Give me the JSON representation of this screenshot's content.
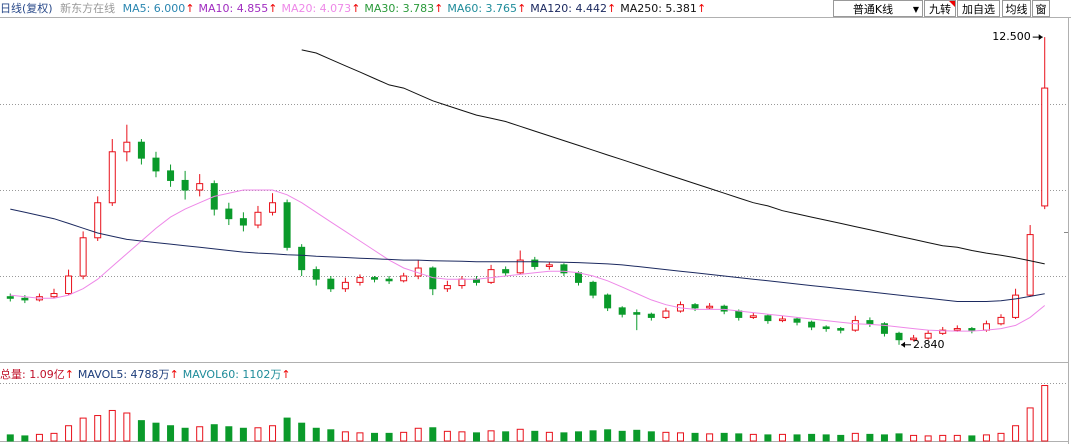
{
  "toolbar": {
    "period": "日线(复权)",
    "stock": "新东方在线",
    "buttons": [
      "普通K线",
      "九转",
      "加自选",
      "均线",
      "窗"
    ]
  },
  "chart_data": {
    "type": "candlestick",
    "categories": [
      null,
      null,
      null,
      null,
      null,
      null,
      null,
      null,
      null,
      null,
      null,
      null,
      null,
      null,
      null,
      null,
      null,
      null,
      null,
      null,
      null,
      null,
      null,
      null,
      null,
      null,
      null,
      null,
      null,
      null,
      null,
      null,
      null,
      null,
      null,
      null,
      null,
      null,
      null,
      null,
      null,
      null,
      null,
      null,
      null,
      null,
      null,
      null,
      null,
      null,
      null,
      null,
      null,
      null,
      null,
      null,
      null,
      null,
      null,
      null,
      null,
      null,
      null,
      null,
      null,
      null,
      null,
      null,
      null,
      null,
      null,
      null
    ],
    "open": [
      4.35,
      4.3,
      4.25,
      4.35,
      4.45,
      5.0,
      6.2,
      7.3,
      8.9,
      9.2,
      8.7,
      8.3,
      8.0,
      7.7,
      7.9,
      7.1,
      6.8,
      6.6,
      7.0,
      7.3,
      5.9,
      5.2,
      4.9,
      4.6,
      4.8,
      4.95,
      4.9,
      4.85,
      5.0,
      5.25,
      4.6,
      4.7,
      4.9,
      4.8,
      5.2,
      5.1,
      5.5,
      5.3,
      5.35,
      5.1,
      4.8,
      4.4,
      4.0,
      3.85,
      3.8,
      3.7,
      3.9,
      4.1,
      4.0,
      4.05,
      3.9,
      3.7,
      3.75,
      3.6,
      3.65,
      3.55,
      3.4,
      3.35,
      3.3,
      3.6,
      3.5,
      3.2,
      3.0,
      3.05,
      3.2,
      3.3,
      3.35,
      3.3,
      3.5,
      3.7,
      4.4,
      7.2
    ],
    "close": [
      4.3,
      4.25,
      4.35,
      4.45,
      5.0,
      6.2,
      7.3,
      8.9,
      9.2,
      8.7,
      8.3,
      8.0,
      7.7,
      7.9,
      7.1,
      6.8,
      6.6,
      7.0,
      7.3,
      5.9,
      5.2,
      4.9,
      4.6,
      4.8,
      4.95,
      4.9,
      4.85,
      5.0,
      5.25,
      4.6,
      4.7,
      4.9,
      4.8,
      5.2,
      5.1,
      5.5,
      5.3,
      5.35,
      5.1,
      4.8,
      4.4,
      4.0,
      3.8,
      3.8,
      3.7,
      3.9,
      4.1,
      4.0,
      4.05,
      3.9,
      3.7,
      3.75,
      3.6,
      3.65,
      3.55,
      3.4,
      3.35,
      3.3,
      3.6,
      3.5,
      3.2,
      3.0,
      3.05,
      3.2,
      3.3,
      3.35,
      3.3,
      3.5,
      3.7,
      4.4,
      6.3,
      10.9
    ],
    "high": [
      4.45,
      4.4,
      4.45,
      4.6,
      5.2,
      6.4,
      7.5,
      9.3,
      9.75,
      9.3,
      8.9,
      8.5,
      8.3,
      8.2,
      8.0,
      7.3,
      7.0,
      7.2,
      7.6,
      7.4,
      6.0,
      5.3,
      5.0,
      4.95,
      5.05,
      5.0,
      5.0,
      5.1,
      5.5,
      5.3,
      4.85,
      5.0,
      5.0,
      5.35,
      5.3,
      5.8,
      5.6,
      5.45,
      5.4,
      5.15,
      4.85,
      4.45,
      4.05,
      3.95,
      3.85,
      4.0,
      4.2,
      4.15,
      4.15,
      4.1,
      3.95,
      3.85,
      3.8,
      3.75,
      3.7,
      3.6,
      3.45,
      3.4,
      3.75,
      3.7,
      3.55,
      3.25,
      3.15,
      3.3,
      3.4,
      3.45,
      3.4,
      3.6,
      3.8,
      4.6,
      6.6,
      12.5
    ],
    "low": [
      4.2,
      4.15,
      4.2,
      4.3,
      4.4,
      4.9,
      6.1,
      7.2,
      8.6,
      8.5,
      8.1,
      7.8,
      7.4,
      7.5,
      6.9,
      6.6,
      6.4,
      6.5,
      6.9,
      5.8,
      5.0,
      4.7,
      4.5,
      4.5,
      4.7,
      4.8,
      4.75,
      4.8,
      4.9,
      4.4,
      4.5,
      4.6,
      4.7,
      4.75,
      5.0,
      5.05,
      5.2,
      5.2,
      5.0,
      4.7,
      4.3,
      3.9,
      3.7,
      3.3,
      3.6,
      3.65,
      3.85,
      3.9,
      3.95,
      3.8,
      3.6,
      3.65,
      3.5,
      3.55,
      3.45,
      3.3,
      3.25,
      3.2,
      3.25,
      3.4,
      3.1,
      2.84,
      2.95,
      3.0,
      3.15,
      3.25,
      3.2,
      3.25,
      3.45,
      3.65,
      4.35,
      7.1
    ],
    "ylim": [
      2.3,
      13.1
    ],
    "up_color": "#e8101a",
    "down_color": "#0a9a2a",
    "series": [
      {
        "label": "MA5: 6.000",
        "arrow": "↑",
        "color": "#2a86b0"
      },
      {
        "label": "MA10: 4.855",
        "arrow": "↑",
        "color": "#a02cc0"
      },
      {
        "label": "MA20: 4.073",
        "arrow": "↑",
        "color": "#ee88e8",
        "values": [
          4.4,
          4.35,
          4.3,
          4.3,
          4.4,
          4.6,
          4.9,
          5.3,
          5.7,
          6.1,
          6.5,
          6.85,
          7.1,
          7.3,
          7.5,
          7.6,
          7.7,
          7.7,
          7.7,
          7.55,
          7.3,
          7.0,
          6.7,
          6.4,
          6.1,
          5.8,
          5.5,
          5.25,
          5.1,
          4.95,
          4.9,
          4.9,
          4.9,
          4.95,
          5.0,
          5.05,
          5.1,
          5.15,
          5.15,
          5.1,
          5.0,
          4.85,
          4.65,
          4.45,
          4.25,
          4.1,
          4.0,
          3.95,
          3.95,
          3.95,
          3.9,
          3.85,
          3.8,
          3.75,
          3.7,
          3.65,
          3.6,
          3.55,
          3.5,
          3.48,
          3.45,
          3.4,
          3.35,
          3.3,
          3.28,
          3.27,
          3.27,
          3.3,
          3.35,
          3.45,
          3.7,
          4.073
        ]
      },
      {
        "label": "MA30: 3.783",
        "arrow": "↑",
        "color": "#2a9a3a"
      },
      {
        "label": "MA60: 3.765",
        "arrow": "↑",
        "color": "#1f8c9a"
      },
      {
        "label": "MA120: 4.442",
        "arrow": "↑",
        "color": "#1c2a60",
        "values": [
          7.1,
          7.0,
          6.9,
          6.8,
          6.65,
          6.5,
          6.35,
          6.25,
          6.15,
          6.1,
          6.05,
          6.0,
          5.95,
          5.9,
          5.85,
          5.8,
          5.75,
          5.72,
          5.7,
          5.67,
          5.65,
          5.62,
          5.6,
          5.58,
          5.56,
          5.54,
          5.52,
          5.5,
          5.5,
          5.48,
          5.47,
          5.46,
          5.45,
          5.45,
          5.45,
          5.45,
          5.45,
          5.44,
          5.43,
          5.42,
          5.4,
          5.38,
          5.35,
          5.3,
          5.25,
          5.2,
          5.15,
          5.1,
          5.05,
          5.0,
          4.95,
          4.9,
          4.85,
          4.8,
          4.75,
          4.7,
          4.65,
          4.6,
          4.55,
          4.5,
          4.45,
          4.4,
          4.35,
          4.3,
          4.25,
          4.2,
          4.2,
          4.2,
          4.22,
          4.28,
          4.36,
          4.442
        ]
      },
      {
        "label": "MA250: 5.381",
        "arrow": "↑",
        "color": "#111111",
        "values": [
          null,
          null,
          null,
          null,
          null,
          null,
          null,
          null,
          null,
          null,
          null,
          null,
          null,
          null,
          null,
          null,
          null,
          null,
          null,
          null,
          12.1,
          12.0,
          11.8,
          11.6,
          11.4,
          11.2,
          11.0,
          10.9,
          10.7,
          10.5,
          10.35,
          10.2,
          10.05,
          9.95,
          9.85,
          9.7,
          9.55,
          9.4,
          9.25,
          9.1,
          8.95,
          8.8,
          8.65,
          8.5,
          8.35,
          8.2,
          8.05,
          7.9,
          7.75,
          7.6,
          7.45,
          7.3,
          7.2,
          7.05,
          6.95,
          6.85,
          6.75,
          6.65,
          6.55,
          6.45,
          6.35,
          6.25,
          6.15,
          6.05,
          5.95,
          5.9,
          5.8,
          5.72,
          5.65,
          5.57,
          5.48,
          5.381
        ]
      }
    ],
    "annotations": [
      {
        "field": "high",
        "value": 12.5,
        "label": "12.500"
      },
      {
        "field": "low",
        "value": 2.84,
        "label": "2.840"
      }
    ],
    "volume": {
      "values": [
        1200,
        1000,
        1300,
        1500,
        3000,
        4500,
        5000,
        6000,
        5500,
        4000,
        3500,
        3000,
        2500,
        2800,
        3200,
        2800,
        2500,
        2600,
        3000,
        4500,
        3500,
        2500,
        2200,
        1800,
        1600,
        1500,
        1500,
        1700,
        2500,
        2600,
        1900,
        1800,
        1600,
        2000,
        1800,
        2300,
        1900,
        1700,
        1600,
        1800,
        2000,
        2200,
        1900,
        2100,
        1800,
        1700,
        1600,
        1500,
        1400,
        1500,
        1400,
        1300,
        1200,
        1300,
        1200,
        1300,
        1200,
        1100,
        1500,
        1300,
        1200,
        1400,
        1100,
        1000,
        1100,
        1100,
        1000,
        1200,
        1500,
        3000,
        6500,
        10900
      ],
      "ylim": [
        0,
        11200
      ],
      "legend": [
        {
          "label": "总量: 1.09亿",
          "arrow": "↑",
          "color": "#c0102a"
        },
        {
          "label": "MAVOL5: 4788万",
          "arrow": "↑",
          "color": "#1c3c7a"
        },
        {
          "label": "MAVOL60: 1102万",
          "arrow": "↑",
          "color": "#1f8c9a"
        }
      ]
    }
  }
}
